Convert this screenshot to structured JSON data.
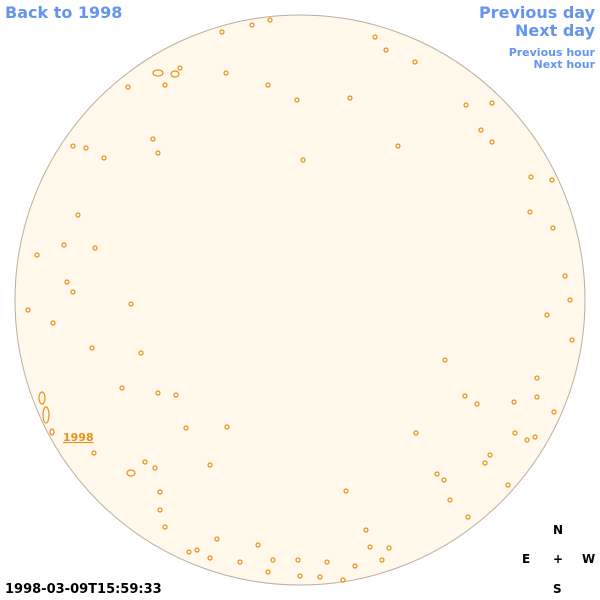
{
  "navigation": {
    "back": "Back to 1998",
    "previous_day": "Previous day",
    "next_day": "Next day",
    "previous_hour": "Previous hour",
    "next_hour": "Next hour"
  },
  "disk": {
    "label": "1998"
  },
  "timestamp": "1998-03-09T15:59:33",
  "compass": {
    "north": "N",
    "east": "E",
    "center": "+",
    "west": "W",
    "south": "S"
  }
}
